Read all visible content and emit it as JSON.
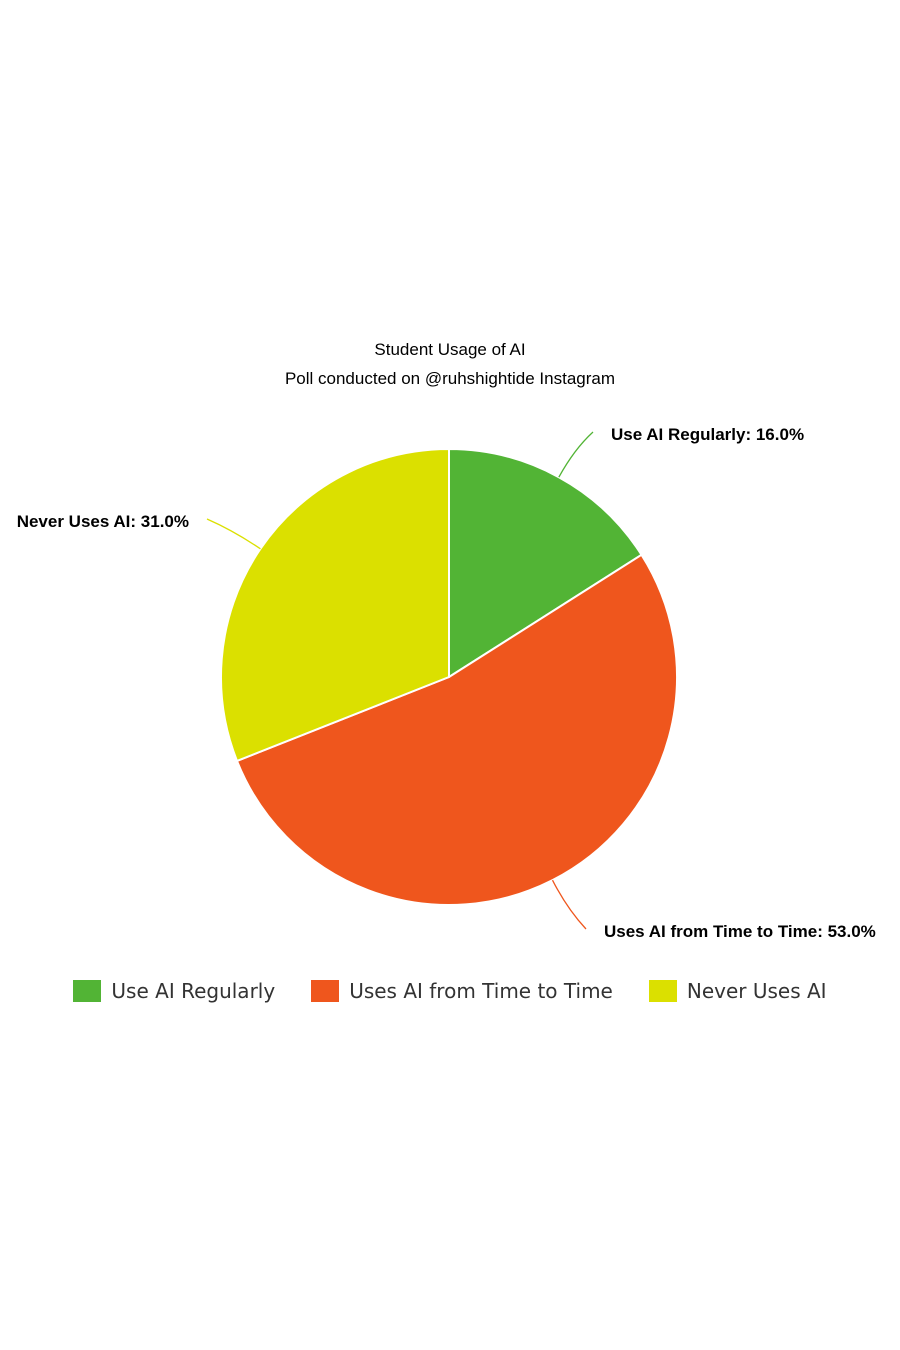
{
  "chart_data": {
    "type": "pie",
    "title": "Student Usage of AI",
    "subtitle": "Poll conducted on @ruhshightide Instagram",
    "slices": [
      {
        "label": "Use AI Regularly",
        "value": 16.0,
        "color": "#52b435",
        "data_label": "Use AI Regularly: 16.0%"
      },
      {
        "label": "Uses AI from Time to Time",
        "value": 53.0,
        "color": "#ef561d",
        "data_label": "Uses AI from Time to Time: 53.0%"
      },
      {
        "label": "Never Uses AI",
        "value": 31.0,
        "color": "#dbe000",
        "data_label": "Never Uses AI: 31.0%"
      }
    ],
    "legend_position": "bottom"
  }
}
